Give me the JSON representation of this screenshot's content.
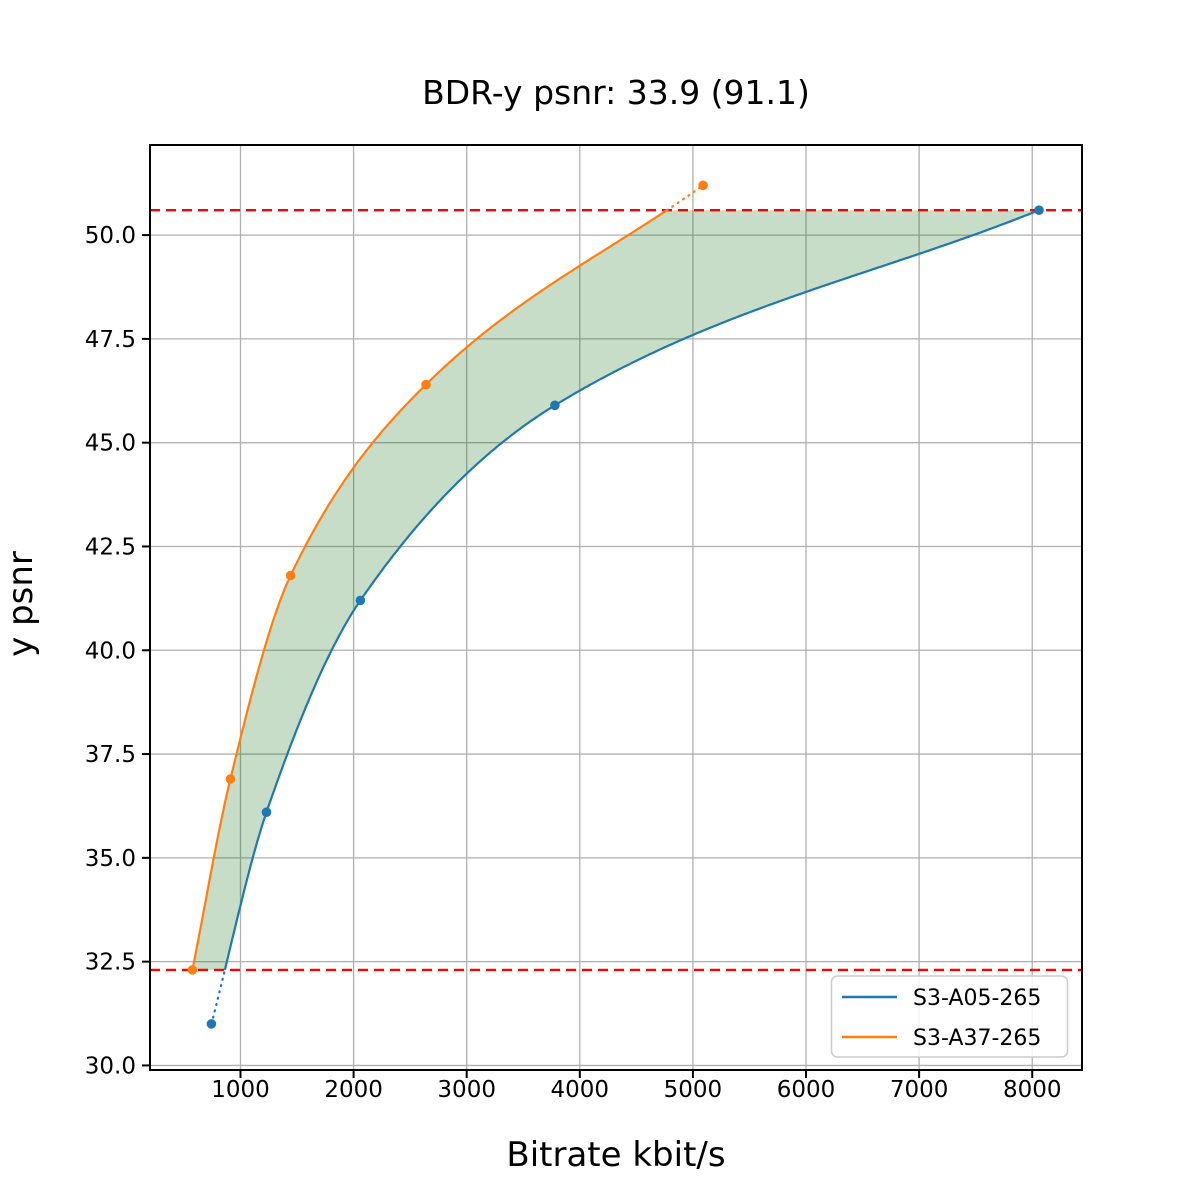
{
  "chart_data": {
    "type": "line",
    "title": "BDR-y psnr: 33.9 (91.1)",
    "xlabel": "Bitrate kbit/s",
    "ylabel": "y psnr",
    "xlim": [
      200,
      8440
    ],
    "ylim": [
      29.89,
      52.17
    ],
    "x_ticks": [
      1000,
      2000,
      3000,
      4000,
      5000,
      6000,
      7000,
      8000
    ],
    "y_ticks": [
      "30.0",
      "32.5",
      "35.0",
      "37.5",
      "40.0",
      "42.5",
      "45.0",
      "47.5",
      "50.0"
    ],
    "grid": true,
    "grid_color": "#b0b0b0",
    "legend_position": "lower right",
    "series": [
      {
        "name": "S3-A05-265",
        "color": "#1f77b4",
        "points": [
          [
            743,
            31.0
          ],
          [
            1230,
            36.1
          ],
          [
            2060,
            41.2
          ],
          [
            3780,
            45.9
          ],
          [
            8060,
            50.6
          ]
        ]
      },
      {
        "name": "S3-A37-265",
        "color": "#ff7f0e",
        "points": [
          [
            575,
            32.3
          ],
          [
            911,
            36.9
          ],
          [
            1443,
            41.8
          ],
          [
            2640,
            46.4
          ],
          [
            5090,
            51.2
          ]
        ]
      }
    ],
    "overlap_bounds": {
      "lower": 32.3,
      "upper": 50.6,
      "line_color": "#ff0000",
      "line_style": "dashed"
    },
    "fill_between_color": "rgba(0,100,0,0.22)"
  }
}
